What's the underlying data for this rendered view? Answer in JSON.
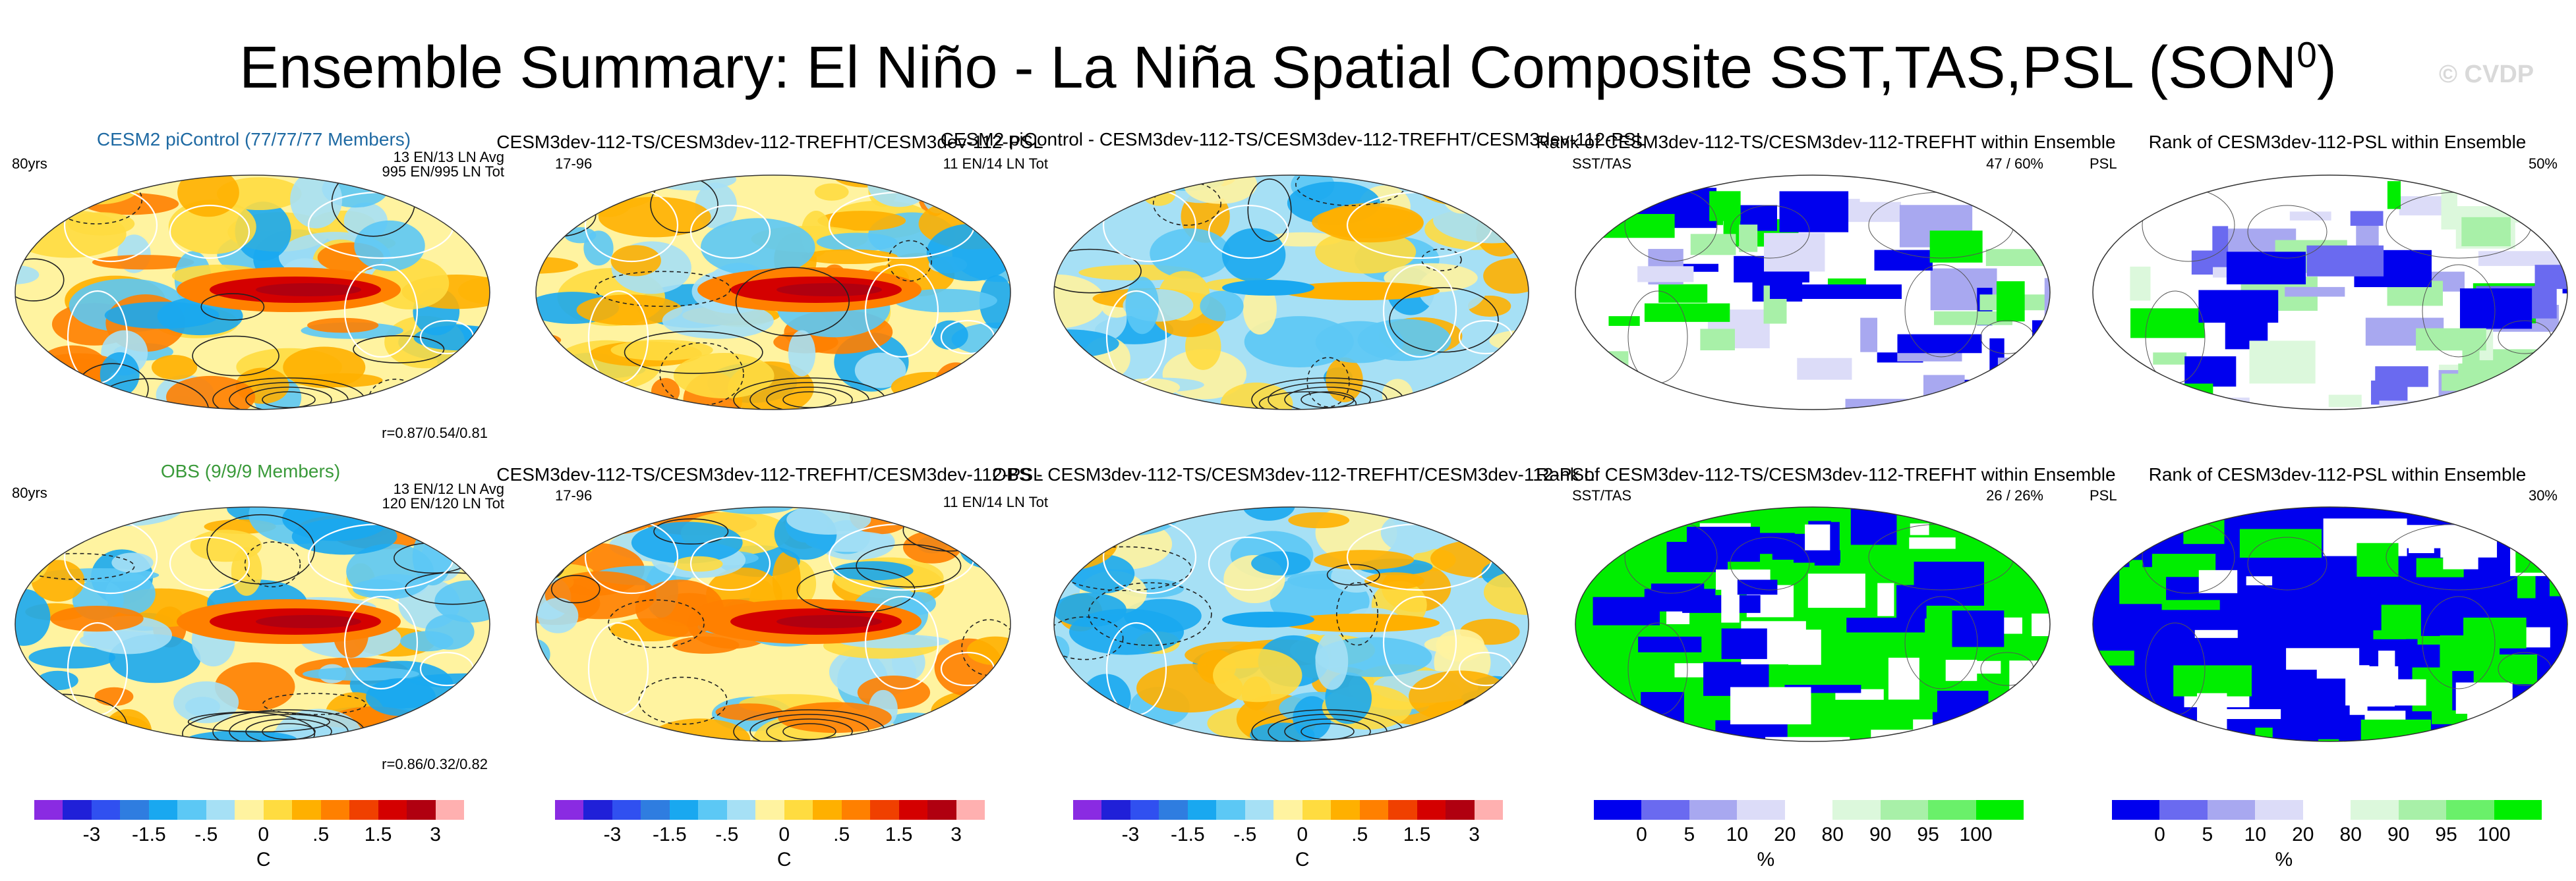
{
  "figure": {
    "title": "Ensemble Summary: El Niño - La Niña Spatial Composite SST,TAS,PSL (SON",
    "title_sup": "0",
    "title_close": ")",
    "watermark": "© CVDP"
  },
  "rows": [
    {
      "ref_title": "CESM2 piControl (77/77/77 Members)",
      "ref_years": "80yrs",
      "ref_info1": "13 EN/13 LN Avg",
      "ref_info2": "995 EN/995 LN Tot",
      "ref_corr": "r=0.87/0.54/0.81",
      "model_title": "CESM3dev-112-TS/CESM3dev-112-TREFHT/CESM3dev-112-PSL",
      "model_years": "17-96",
      "model_info": "11 EN/14 LN Tot",
      "diff_title": "CESM2 piControl - CESM3dev-112-TS/CESM3dev-112-TREFHT/CESM3dev-112-PSL",
      "rank_sst_title": "Rank of CESM3dev-112-TS/CESM3dev-112-TREFHT within Ensemble",
      "rank_sst_label": "SST/TAS",
      "rank_sst_pct": "47 /  60%",
      "rank_psl_title": "Rank of CESM3dev-112-PSL within Ensemble",
      "rank_psl_label": "PSL",
      "rank_psl_pct": "50%"
    },
    {
      "ref_title": "OBS (9/9/9 Members)",
      "ref_years": "80yrs",
      "ref_info1": "13 EN/12 LN Avg",
      "ref_info2": "120 EN/120 LN Tot",
      "ref_corr": "r=0.86/0.32/0.82",
      "model_title": "CESM3dev-112-TS/CESM3dev-112-TREFHT/CESM3dev-112-PSL",
      "model_years": "17-96",
      "model_info": "11 EN/14 LN Tot",
      "diff_title": "OBS - CESM3dev-112-TS/CESM3dev-112-TREFHT/CESM3dev-112-PSL",
      "rank_sst_title": "Rank of CESM3dev-112-TS/CESM3dev-112-TREFHT within Ensemble",
      "rank_sst_label": "SST/TAS",
      "rank_sst_pct": "26 /  26%",
      "rank_psl_title": "Rank of CESM3dev-112-PSL within Ensemble",
      "rank_psl_label": "PSL",
      "rank_psl_pct": "30%"
    }
  ],
  "chart_data": [
    {
      "type": "heatmap",
      "name": "temperature composite colorbar",
      "unit": "C",
      "tick_labels": [
        "-3",
        "-1.5",
        "-.5",
        "0",
        ".5",
        "1.5",
        "3"
      ],
      "colors": [
        "#8a2be2",
        "#2020d8",
        "#3050f0",
        "#2f7de0",
        "#19a8f0",
        "#5cc8f5",
        "#a6e0f5",
        "#fff3a0",
        "#ffdc40",
        "#ffb000",
        "#ff8000",
        "#f04000",
        "#d40000",
        "#b00010",
        "#ffb0b0"
      ]
    },
    {
      "type": "heatmap",
      "name": "rank colorbar",
      "unit": "%",
      "tick_labels": [
        "0",
        "5",
        "10",
        "20",
        "80",
        "90",
        "95",
        "100"
      ],
      "colors": [
        "#0000ee",
        "#6a6af0",
        "#a8a8f0",
        "#dcdcf8",
        "#ffffff",
        "#dcf8dc",
        "#a8f0a8",
        "#6af06a",
        "#00ee00"
      ]
    }
  ]
}
